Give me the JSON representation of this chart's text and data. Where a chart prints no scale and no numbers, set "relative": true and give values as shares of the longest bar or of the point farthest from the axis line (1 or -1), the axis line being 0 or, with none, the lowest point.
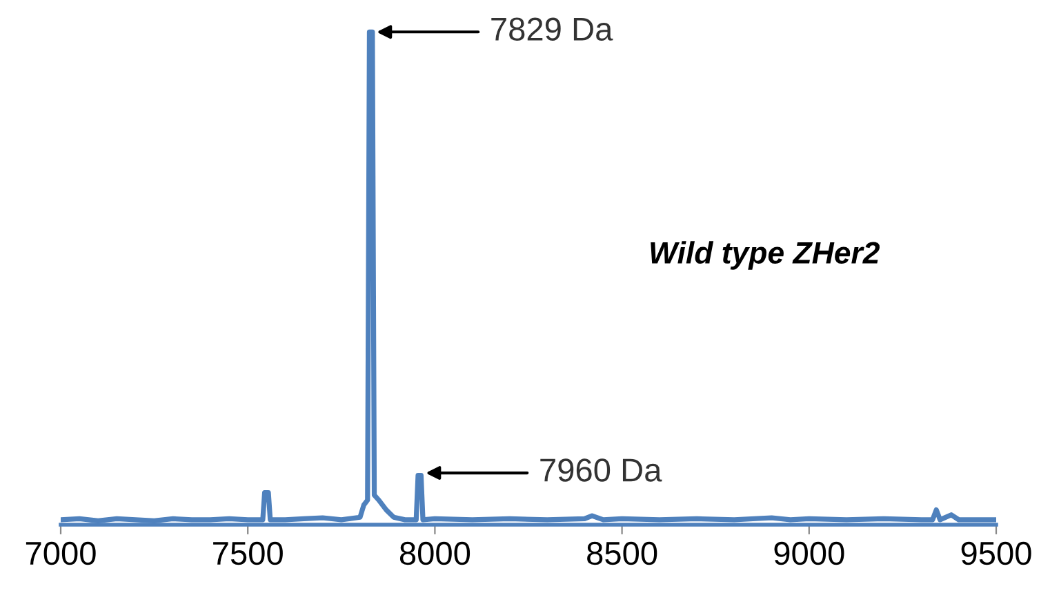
{
  "chart_data": {
    "type": "line",
    "relative": true,
    "xlim": [
      7000,
      9500
    ],
    "xticks": [
      7000,
      7500,
      8000,
      8500,
      9000,
      9500
    ],
    "tick_labels": "x",
    "grid": false,
    "marker": "none",
    "line_style": "solid",
    "series": [
      {
        "color": "#4f81bd",
        "x": [
          7000,
          7050,
          7100,
          7150,
          7200,
          7250,
          7300,
          7350,
          7400,
          7450,
          7500,
          7540,
          7545,
          7555,
          7560,
          7600,
          7650,
          7700,
          7750,
          7800,
          7810,
          7820,
          7825,
          7833,
          7838,
          7850,
          7870,
          7890,
          7920,
          7950,
          7955,
          7963,
          7968,
          8000,
          8100,
          8200,
          8300,
          8400,
          8420,
          8450,
          8500,
          8600,
          8700,
          8800,
          8900,
          8950,
          9000,
          9100,
          9200,
          9300,
          9330,
          9340,
          9350,
          9380,
          9400,
          9500
        ],
        "values": [
          0.01,
          0.012,
          0.008,
          0.012,
          0.01,
          0.008,
          0.012,
          0.01,
          0.01,
          0.012,
          0.01,
          0.01,
          0.065,
          0.065,
          0.01,
          0.01,
          0.012,
          0.014,
          0.01,
          0.015,
          0.04,
          0.05,
          1.0,
          1.0,
          0.06,
          0.05,
          0.03,
          0.015,
          0.01,
          0.01,
          0.1,
          0.1,
          0.01,
          0.012,
          0.01,
          0.012,
          0.01,
          0.012,
          0.018,
          0.01,
          0.012,
          0.01,
          0.012,
          0.01,
          0.014,
          0.01,
          0.012,
          0.01,
          0.012,
          0.01,
          0.01,
          0.03,
          0.01,
          0.02,
          0.01,
          0.01
        ]
      }
    ],
    "annotations": [
      {
        "text": "7829 Da",
        "x": 7829,
        "y": 1.0
      },
      {
        "text": "7960 Da",
        "x": 7960,
        "y": 0.105
      },
      "Wild type ZHer2"
    ]
  }
}
